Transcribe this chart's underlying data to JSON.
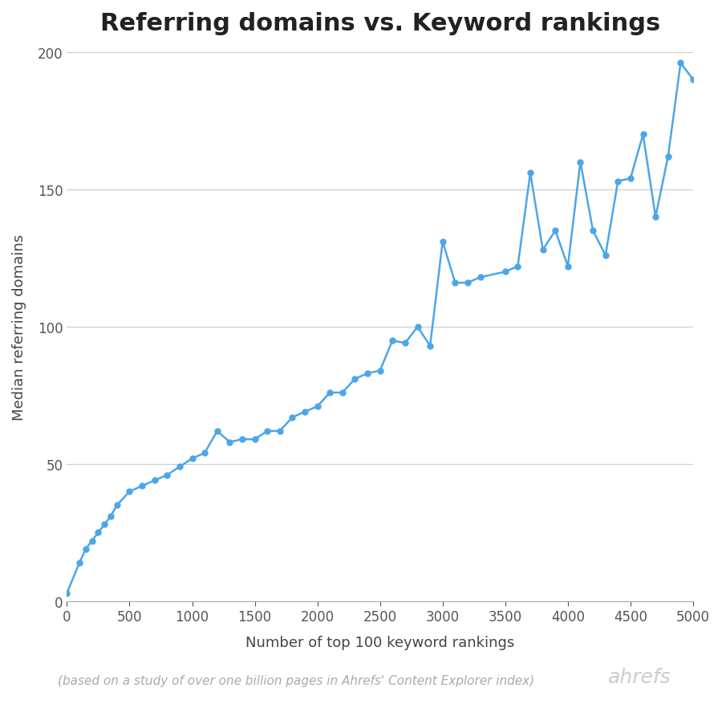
{
  "title": "Referring domains vs. Keyword rankings",
  "xlabel": "Number of top 100 keyword rankings",
  "ylabel": "Median referring domains",
  "footnote": "(based on a study of over one billion pages in Ahrefs' Content Explorer index)",
  "watermark": "ahrefs",
  "line_color": "#4da6e8",
  "marker_color": "#4da6e8",
  "background_color": "#ffffff",
  "x": [
    0,
    100,
    150,
    200,
    250,
    300,
    350,
    400,
    500,
    600,
    700,
    800,
    900,
    1000,
    1100,
    1200,
    1300,
    1400,
    1500,
    1600,
    1700,
    1800,
    1900,
    2000,
    2100,
    2200,
    2300,
    2400,
    2500,
    2600,
    2700,
    2800,
    2900,
    3000,
    3100,
    3200,
    3300,
    3500,
    3600,
    3700,
    3800,
    3900,
    4000,
    4100,
    4200,
    4300,
    4400,
    4500,
    4600,
    4700,
    4800,
    4900,
    5000
  ],
  "y": [
    3,
    14,
    19,
    22,
    25,
    28,
    31,
    35,
    40,
    42,
    44,
    46,
    49,
    52,
    54,
    62,
    58,
    59,
    59,
    62,
    62,
    67,
    69,
    71,
    76,
    76,
    81,
    83,
    84,
    95,
    94,
    100,
    93,
    131,
    116,
    116,
    118,
    120,
    122,
    156,
    128,
    135,
    122,
    160,
    135,
    126,
    153,
    154,
    170,
    140,
    162,
    196,
    190
  ],
  "xlim": [
    0,
    5000
  ],
  "ylim": [
    0,
    200
  ],
  "xticks": [
    0,
    500,
    1000,
    1500,
    2000,
    2500,
    3000,
    3500,
    4000,
    4500,
    5000
  ],
  "yticks": [
    0,
    50,
    100,
    150,
    200
  ],
  "grid_color": "#cccccc",
  "title_fontsize": 22,
  "label_fontsize": 13,
  "tick_fontsize": 12,
  "footnote_fontsize": 11,
  "watermark_fontsize": 18
}
